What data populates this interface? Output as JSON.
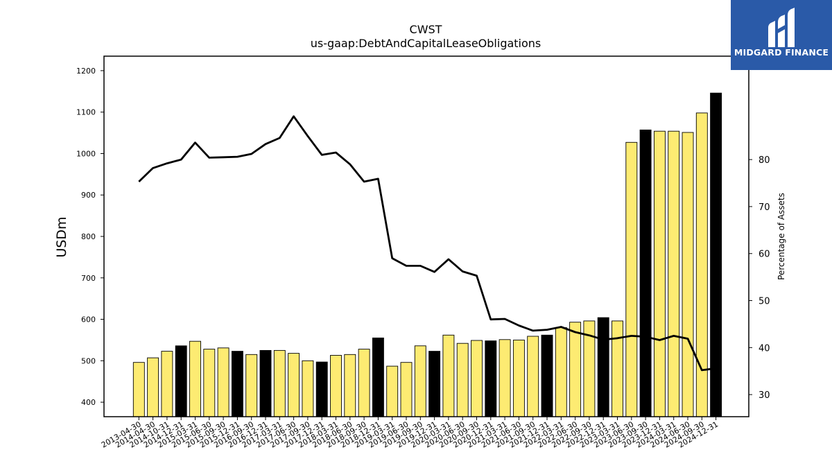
{
  "chart_data": {
    "type": "bar+line",
    "title": "CWST",
    "subtitle": "us-gaap:DebtAndCapitalLeaseObligations",
    "ylabel": "USDm",
    "y2label": "Percentage of Assets",
    "ylim": [
      365,
      1235
    ],
    "y2lim": [
      25.3,
      102.0
    ],
    "yticks": [
      "400",
      "500",
      "600",
      "700",
      "800",
      "900",
      "1000",
      "1100",
      "1200"
    ],
    "y2ticks": [
      "30",
      "40",
      "50",
      "60",
      "70",
      "80"
    ],
    "categories": [
      "2013-04-30",
      "2014-04-30",
      "2014-10-31",
      "2014-12-31",
      "2015-03-31",
      "2015-06-30",
      "2015-09-30",
      "2015-12-31",
      "2016-09-30",
      "2016-12-31",
      "2017-03-31",
      "2017-06-30",
      "2017-09-30",
      "2017-12-31",
      "2018-03-31",
      "2018-06-30",
      "2018-09-30",
      "2018-12-31",
      "2019-03-31",
      "2019-06-30",
      "2019-09-30",
      "2019-12-31",
      "2020-03-31",
      "2020-06-30",
      "2020-09-30",
      "2020-12-31",
      "2021-03-31",
      "2021-06-30",
      "2021-09-30",
      "2021-12-31",
      "2022-03-31",
      "2022-06-30",
      "2022-09-30",
      "2022-12-31",
      "2023-03-31",
      "2023-06-30",
      "2023-09-30",
      "2023-12-31",
      "2024-03-31",
      "2024-06-30",
      "2024-09-30",
      "2024-12-31"
    ],
    "series": [
      {
        "kind": "bar",
        "values": [
          496,
          507,
          523,
          536,
          547,
          528,
          531,
          523,
          515,
          525,
          525,
          518,
          500,
          497,
          513,
          515,
          528,
          555,
          487,
          496,
          536,
          523,
          562,
          542,
          549,
          548,
          551,
          550,
          559,
          562,
          580,
          593,
          596,
          604,
          596,
          1027,
          1057,
          1054,
          1054,
          1051,
          1098,
          1146
        ],
        "highlight": [
          false,
          false,
          false,
          true,
          false,
          false,
          false,
          true,
          false,
          true,
          false,
          false,
          false,
          true,
          false,
          false,
          false,
          true,
          false,
          false,
          false,
          true,
          false,
          false,
          false,
          true,
          false,
          false,
          false,
          true,
          false,
          false,
          false,
          true,
          false,
          false,
          true,
          false,
          false,
          false,
          false,
          true
        ]
      },
      {
        "kind": "line",
        "axis": "right",
        "values": [
          75.3,
          78.2,
          79.2,
          80.0,
          83.6,
          80.4,
          80.5,
          80.6,
          81.2,
          83.3,
          84.6,
          89.2,
          85.0,
          81.0,
          81.5,
          79.0,
          75.3,
          75.9,
          59.0,
          57.4,
          57.4,
          56.1,
          58.8,
          56.2,
          55.3,
          46.0,
          46.1,
          44.7,
          43.6,
          43.8,
          44.4,
          43.3,
          42.6,
          41.7,
          42.0,
          42.5,
          42.3,
          41.6,
          42.5,
          41.9,
          35.2,
          35.6
        ]
      }
    ],
    "colors": {
      "bar": "#fdeb72",
      "bar_highlight": "#000000",
      "line": "#000000",
      "edge": "#000000"
    }
  },
  "logo": {
    "text": "MIDGARD FINANCE",
    "bg": "#2a5aa8"
  }
}
